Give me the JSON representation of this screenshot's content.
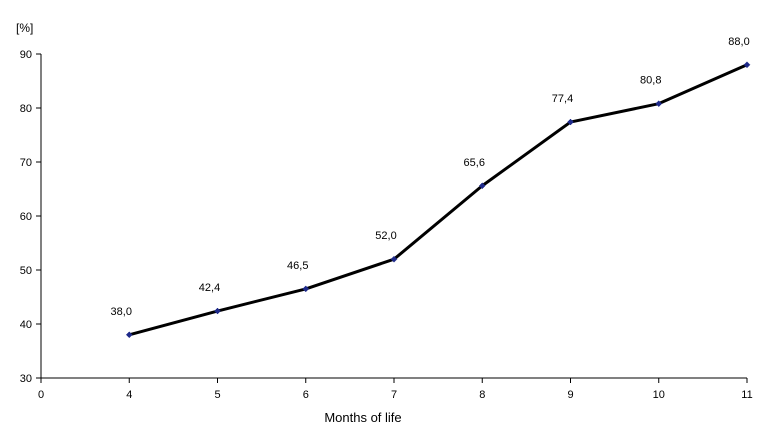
{
  "chart_data": {
    "type": "line",
    "categories": [
      "0",
      "4",
      "5",
      "6",
      "7",
      "8",
      "9",
      "10",
      "11"
    ],
    "x": [
      4,
      5,
      6,
      7,
      8,
      9,
      10,
      11
    ],
    "values": [
      38.0,
      42.4,
      46.5,
      52.0,
      65.6,
      77.4,
      80.8,
      88.0
    ],
    "data_labels": [
      "38,0",
      "42,4",
      "46,5",
      "52,0",
      "65,6",
      "77,4",
      "80,8",
      "88,0"
    ],
    "title": "",
    "xlabel": "Months of life",
    "ylabel": "[%]",
    "ylim": [
      30,
      90
    ],
    "yticks": [
      "30",
      "40",
      "50",
      "60",
      "70",
      "80",
      "90"
    ],
    "line_color": "#000000",
    "marker_color": "#1f2a8a",
    "grid": false,
    "legend": "none"
  }
}
